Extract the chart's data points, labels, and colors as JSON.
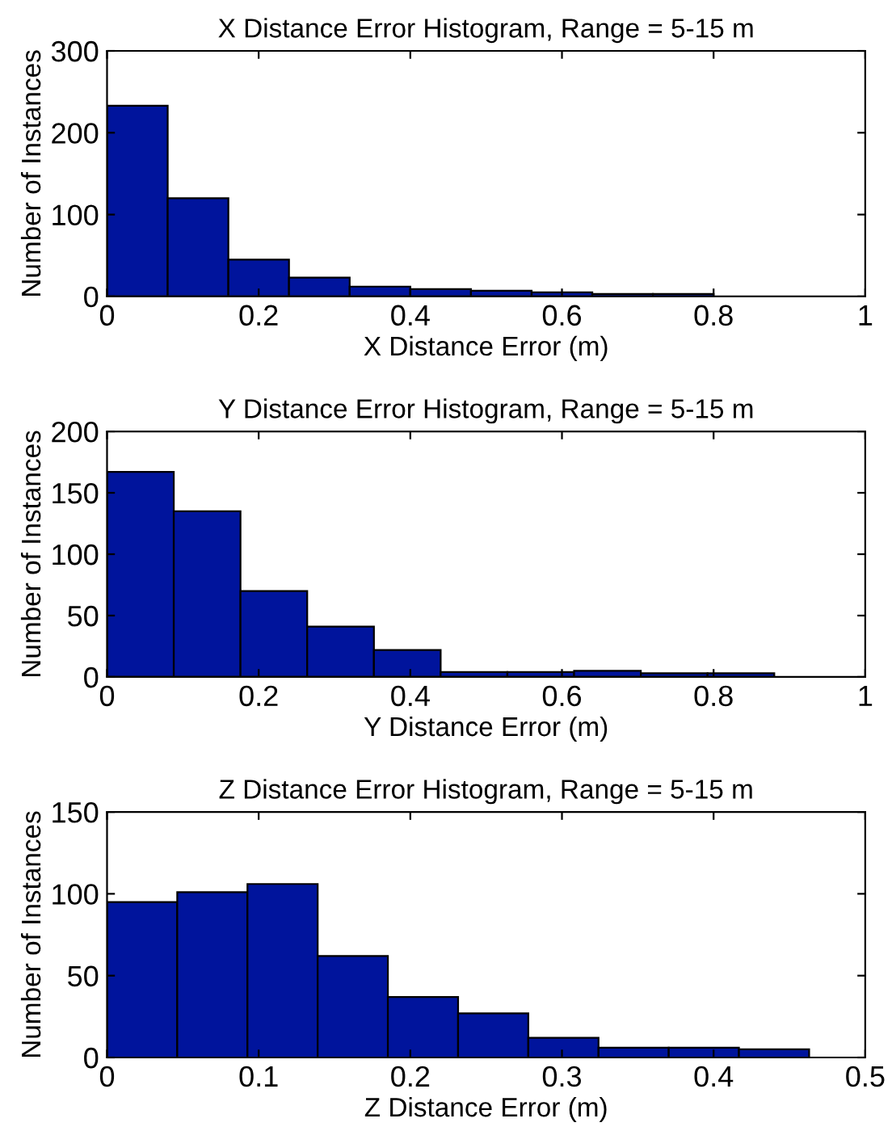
{
  "chart_data": [
    {
      "type": "histogram",
      "title": "X Distance Error Histogram, Range = 5-15 m",
      "xlabel": "X Distance Error (m)",
      "ylabel": "Number of Instances",
      "color": "#00149c",
      "bins": [
        0,
        0.08,
        0.16,
        0.24,
        0.32,
        0.4,
        0.48,
        0.56,
        0.64,
        0.72,
        0.8
      ],
      "values": [
        233,
        120,
        45,
        23,
        12,
        9,
        7,
        5,
        3,
        3
      ],
      "xlim": [
        0,
        1
      ],
      "xticks": [
        0,
        0.2,
        0.4,
        0.6,
        0.8,
        1
      ],
      "ylim": [
        0,
        300
      ],
      "yticks": [
        0,
        100,
        200,
        300
      ],
      "grid": false
    },
    {
      "type": "histogram",
      "title": "Y Distance Error Histogram, Range = 5-15 m",
      "xlabel": "Y Distance Error (m)",
      "ylabel": "Number of Instances",
      "color": "#00149c",
      "bins": [
        0,
        0.088,
        0.176,
        0.264,
        0.352,
        0.44,
        0.528,
        0.616,
        0.704,
        0.792,
        0.88
      ],
      "values": [
        167,
        135,
        70,
        41,
        22,
        4,
        4,
        5,
        3,
        3
      ],
      "xlim": [
        0,
        1
      ],
      "xticks": [
        0,
        0.2,
        0.4,
        0.6,
        0.8,
        1
      ],
      "ylim": [
        0,
        200
      ],
      "yticks": [
        0,
        50,
        100,
        150,
        200
      ],
      "grid": false
    },
    {
      "type": "histogram",
      "title": "Z Distance Error Histogram, Range = 5-15 m",
      "xlabel": "Z Distance Error (m)",
      "ylabel": "Number of Instances",
      "color": "#00149c",
      "bins": [
        0,
        0.0463,
        0.0926,
        0.1389,
        0.1852,
        0.2315,
        0.2778,
        0.3241,
        0.3704,
        0.4167,
        0.463
      ],
      "values": [
        95,
        101,
        106,
        62,
        37,
        27,
        12,
        6,
        6,
        5
      ],
      "xlim": [
        0,
        0.5
      ],
      "xticks": [
        0,
        0.1,
        0.2,
        0.3,
        0.4,
        0.5
      ],
      "ylim": [
        0,
        150
      ],
      "yticks": [
        0,
        50,
        100,
        150
      ],
      "grid": false
    }
  ]
}
